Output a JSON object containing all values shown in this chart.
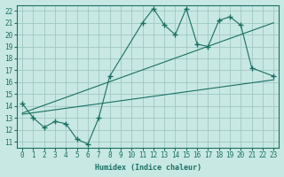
{
  "xlabel": "Humidex (Indice chaleur)",
  "bg_color": "#c8e8e4",
  "grid_color": "#a0c8c4",
  "line_color": "#1a7060",
  "xlim": [
    -0.5,
    23.5
  ],
  "ylim": [
    10.5,
    22.5
  ],
  "xticks": [
    0,
    1,
    2,
    3,
    4,
    5,
    6,
    7,
    8,
    9,
    10,
    11,
    12,
    13,
    14,
    15,
    16,
    17,
    18,
    19,
    20,
    21,
    22,
    23
  ],
  "yticks": [
    11,
    12,
    13,
    14,
    15,
    16,
    17,
    18,
    19,
    20,
    21,
    22
  ],
  "main_x": [
    0,
    1,
    2,
    3,
    4,
    5,
    6,
    7,
    8,
    11,
    12,
    13,
    14,
    15,
    16,
    17,
    18,
    19,
    20,
    21,
    23
  ],
  "main_y": [
    14.2,
    13.0,
    12.2,
    12.7,
    12.5,
    11.2,
    10.8,
    13.0,
    16.5,
    21.0,
    22.2,
    20.8,
    20.0,
    22.2,
    19.2,
    19.0,
    21.2,
    21.5,
    20.8,
    17.2,
    16.5
  ],
  "line1_x": [
    0,
    23
  ],
  "line1_y": [
    13.3,
    16.2
  ],
  "line2_x": [
    0,
    23
  ],
  "line2_y": [
    13.4,
    21.0
  ]
}
